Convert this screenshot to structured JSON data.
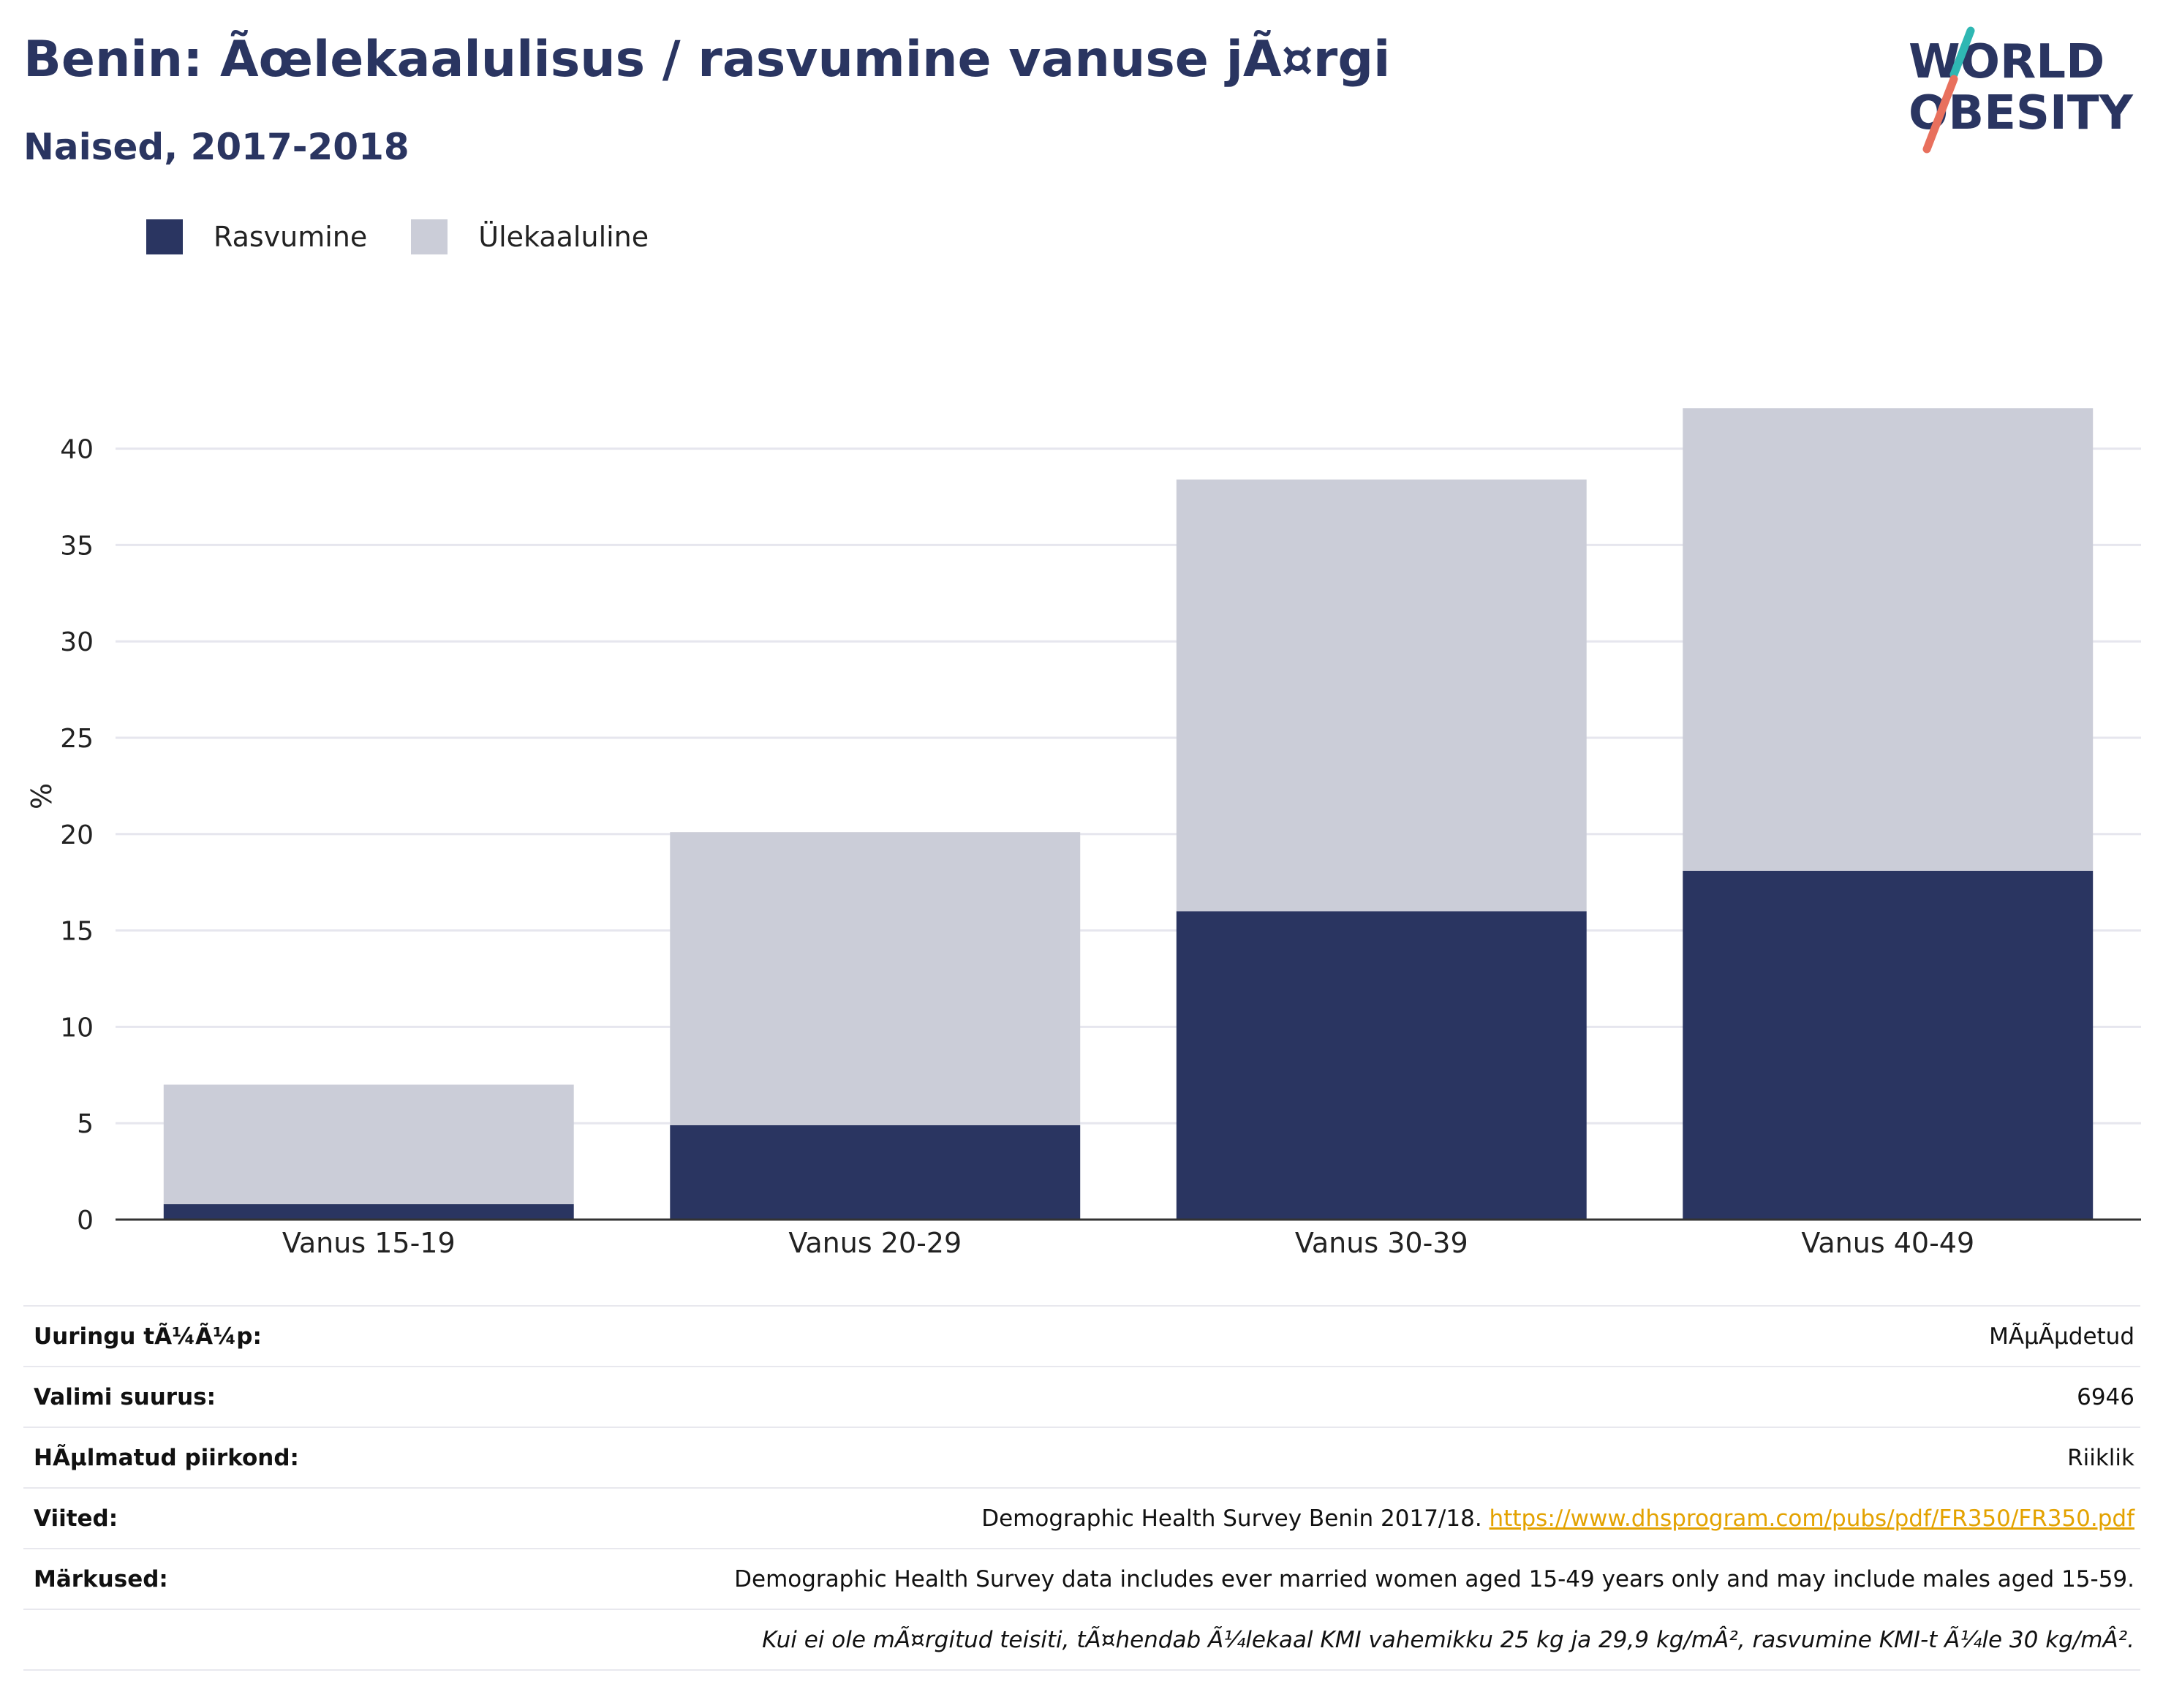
{
  "header": {
    "title": "Benin: Ãœlekaalulisus / rasvumine vanuse jÃ¤rgi",
    "subtitle": "Naised, 2017-2018"
  },
  "logo": {
    "line1": "WORLD",
    "line2": "OBESITY",
    "accent_teal": "#2fb7b3",
    "accent_coral": "#e8705d"
  },
  "colors": {
    "obesity": "#2a3561",
    "overweight": "#cbcdd8",
    "axis": "#333333",
    "grid": "#e6e6ee"
  },
  "chart_data": {
    "type": "bar",
    "stacked": true,
    "categories": [
      "Vanus 15-19",
      "Vanus 20-29",
      "Vanus 30-39",
      "Vanus 40-49"
    ],
    "series": [
      {
        "name": "Rasvumine",
        "values": [
          0.8,
          4.9,
          16.0,
          18.1
        ]
      },
      {
        "name": "Ülekaaluline",
        "values": [
          6.2,
          15.2,
          22.4,
          24.0
        ]
      }
    ],
    "ylabel": "%",
    "ylim": [
      0,
      42
    ],
    "yticks": [
      0,
      5,
      10,
      15,
      20,
      25,
      30,
      35,
      40
    ],
    "grid": true,
    "legend": "top-left"
  },
  "info": {
    "rows": [
      {
        "label": "Uuringu tÃ¼Ã¼p:",
        "value": "MÃµÃµdetud"
      },
      {
        "label": "Valimi suurus:",
        "value": "6946"
      },
      {
        "label": "HÃµlmatud piirkond:",
        "value": "Riiklik"
      },
      {
        "label": "Viited:",
        "value": "Demographic Health Survey Benin 2017/18.",
        "link": "https://www.dhsprogram.com/pubs/pdf/FR350/FR350.pdf"
      },
      {
        "label": "Märkused:",
        "value": "Demographic Health Survey data includes ever married women aged 15-49 years only and may include males aged 15-59."
      }
    ],
    "note2": "Kui ei ole mÃ¤rgitud teisiti, tÃ¤hendab Ã¼lekaal KMI vahemikku 25 kg ja 29,9 kg/mÂ², rasvumine KMI-t Ã¼le 30 kg/mÂ²."
  }
}
